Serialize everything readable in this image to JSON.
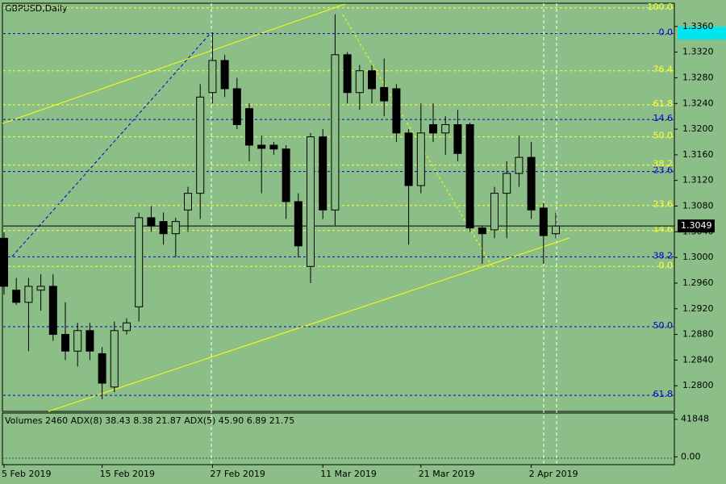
{
  "chart_data": {
    "type": "candlestick",
    "title": "GBPUSD,Daily",
    "categories": [
      "5 Feb 2019",
      null,
      null,
      null,
      null,
      null,
      null,
      null,
      "15 Feb 2019",
      null,
      null,
      null,
      null,
      null,
      null,
      null,
      null,
      "27 Feb 2019",
      null,
      null,
      null,
      null,
      null,
      null,
      null,
      null,
      "11 Mar 2019",
      null,
      null,
      null,
      null,
      null,
      null,
      null,
      "21 Mar 2019",
      null,
      null,
      null,
      null,
      null,
      null,
      null,
      null,
      "2 Apr 2019",
      null,
      null
    ],
    "open": [
      1.303,
      1.2949,
      1.293,
      1.2949,
      1.2955,
      1.288,
      1.2854,
      1.2886,
      1.285,
      1.2798,
      1.2886,
      1.2923,
      1.3062,
      1.3056,
      1.3037,
      1.3074,
      1.31,
      1.3257,
      1.3307,
      1.3263,
      1.3232,
      1.3175,
      1.3175,
      1.3169,
      1.3087,
      1.2986,
      1.3188,
      1.3074,
      1.3316,
      1.3257,
      1.3291,
      1.3265,
      1.3263,
      1.3194,
      1.3112,
      1.3207,
      1.3194,
      1.3207,
      1.3207,
      1.3046,
      1.3043,
      1.31,
      1.3131,
      1.3156,
      1.3077,
      1.3037
    ],
    "high": [
      1.3039,
      1.2968,
      1.2968,
      1.2974,
      1.2974,
      1.293,
      1.2898,
      1.2898,
      1.286,
      1.29,
      1.2905,
      1.307,
      1.308,
      1.307,
      1.3062,
      1.311,
      1.327,
      1.3351,
      1.3316,
      1.328,
      1.324,
      1.319,
      1.318,
      1.3175,
      1.31,
      1.3194,
      1.32,
      1.3379,
      1.332,
      1.33,
      1.33,
      1.331,
      1.327,
      1.32,
      1.324,
      1.324,
      1.322,
      1.323,
      1.321,
      1.305,
      1.311,
      1.315,
      1.319,
      1.318,
      1.3085,
      1.307
    ],
    "low": [
      1.2942,
      1.2926,
      1.2854,
      1.2917,
      1.287,
      1.284,
      1.283,
      1.284,
      1.2779,
      1.279,
      1.288,
      1.29,
      1.304,
      1.302,
      1.3,
      1.304,
      1.306,
      1.324,
      1.325,
      1.32,
      1.315,
      1.31,
      1.316,
      1.306,
      1.3,
      1.296,
      1.306,
      1.305,
      1.324,
      1.323,
      1.324,
      1.322,
      1.318,
      1.302,
      1.31,
      1.318,
      1.316,
      1.315,
      1.304,
      1.299,
      1.303,
      1.303,
      1.311,
      1.306,
      1.299,
      1.303
    ],
    "close": [
      1.2955,
      1.293,
      1.2955,
      1.2955,
      1.288,
      1.2854,
      1.2886,
      1.2854,
      1.2804,
      1.2886,
      1.2898,
      1.3062,
      1.3049,
      1.3037,
      1.3056,
      1.31,
      1.325,
      1.3307,
      1.3263,
      1.3207,
      1.3175,
      1.317,
      1.3169,
      1.3087,
      1.3018,
      1.3188,
      1.3074,
      1.3316,
      1.3257,
      1.3291,
      1.3263,
      1.3244,
      1.3194,
      1.3112,
      1.3194,
      1.3194,
      1.3207,
      1.3162,
      1.3046,
      1.3037,
      1.31,
      1.3131,
      1.3156,
      1.3074,
      1.3034,
      1.3049
    ],
    "ylim": [
      1.276,
      1.3395
    ],
    "yticks": [
      {
        "value": 1.336,
        "label": "1.3360"
      },
      {
        "value": 1.332,
        "label": "1.3320"
      },
      {
        "value": 1.328,
        "label": "1.3280"
      },
      {
        "value": 1.324,
        "label": "1.3240"
      },
      {
        "value": 1.32,
        "label": "1.3200"
      },
      {
        "value": 1.316,
        "label": "1.3160"
      },
      {
        "value": 1.312,
        "label": "1.3120"
      },
      {
        "value": 1.308,
        "label": "1.3080"
      },
      {
        "value": 1.304,
        "label": "1.3040"
      },
      {
        "value": 1.3,
        "label": "1.3000"
      },
      {
        "value": 1.296,
        "label": "1.2960"
      },
      {
        "value": 1.292,
        "label": "1.2920"
      },
      {
        "value": 1.288,
        "label": "1.2880"
      },
      {
        "value": 1.284,
        "label": "1.2840"
      },
      {
        "value": 1.28,
        "label": "1.2800"
      }
    ],
    "current_price": 1.3049,
    "fib_yellow": [
      {
        "label": "100.0",
        "price": 1.3389
      },
      {
        "label": "76.4",
        "price": 1.3291
      },
      {
        "label": "61.8",
        "price": 1.3238
      },
      {
        "label": "50.0",
        "price": 1.3188
      },
      {
        "label": "38.2",
        "price": 1.3144
      },
      {
        "label": "23.6",
        "price": 1.3081
      },
      {
        "label": "14.6",
        "price": 1.3042
      },
      {
        "label": "0.0",
        "price": 1.2986
      }
    ],
    "fib_blue": [
      {
        "label": "0.0",
        "price": 1.3349
      },
      {
        "label": "14.6",
        "price": 1.3215
      },
      {
        "label": "23.6",
        "price": 1.3134
      },
      {
        "label": "38.2",
        "price": 1.3001
      },
      {
        "label": "50.0",
        "price": 1.2892
      },
      {
        "label": "61.8",
        "price": 1.2785
      }
    ],
    "indicator_panel": {
      "title": "Volumes 2460 ADX(8) 38.43 8.38 21.87 ADX(5) 45.90 6.89 21.75",
      "ylim": [
        -8700,
        48800
      ],
      "yticks": [
        41848,
        {
          "value": 0,
          "label": "0.00"
        }
      ]
    }
  }
}
